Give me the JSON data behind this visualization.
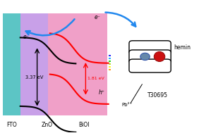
{
  "fto_color": "#5CC5C5",
  "zno_color": "#C8A0E8",
  "bioi_color": "#F0A0C8",
  "label_fto": "FTO",
  "label_zno": "ZnO",
  "label_bioi": "BiOI",
  "energy_zno": "3.37 eV",
  "energy_bioi": "1.81 eV",
  "label_eminus": "e⁻",
  "label_hplus": "h⁺",
  "label_hemin": "hemin",
  "label_t30695": "T30695",
  "label_pb": "Pb²⁺",
  "bg_color": "#ffffff",
  "blue_arrow_color": "#2288EE",
  "light_colors": [
    "#0000FF",
    "#00AAFF",
    "#00CC00",
    "#AADD00",
    "#FFFF00",
    "#FF8800"
  ]
}
